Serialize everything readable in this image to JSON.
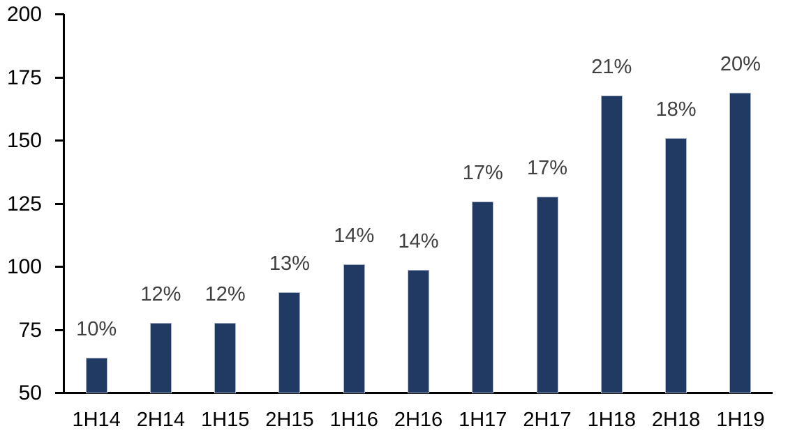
{
  "chart_data": {
    "type": "bar",
    "title": "",
    "xlabel": "",
    "ylabel": "",
    "categories": [
      "1H14",
      "2H14",
      "1H15",
      "2H15",
      "1H16",
      "2H16",
      "1H17",
      "2H17",
      "1H18",
      "2H18",
      "1H19"
    ],
    "values": [
      64,
      78,
      78,
      90,
      101,
      99,
      126,
      128,
      168,
      151,
      169
    ],
    "data_labels": [
      "10%",
      "12%",
      "12%",
      "13%",
      "14%",
      "14%",
      "17%",
      "17%",
      "21%",
      "18%",
      "20%"
    ],
    "ylim": [
      50,
      200
    ],
    "y_ticks": [
      50,
      75,
      100,
      125,
      150,
      175,
      200
    ],
    "grid": false,
    "legend": false,
    "colors": {
      "bar_fill": "#213A63",
      "bar_border": "#AEB6CB",
      "data_label": "#404040",
      "axis_text": "#000000",
      "axis_line": "#000000",
      "background": "#FFFFFF"
    }
  }
}
